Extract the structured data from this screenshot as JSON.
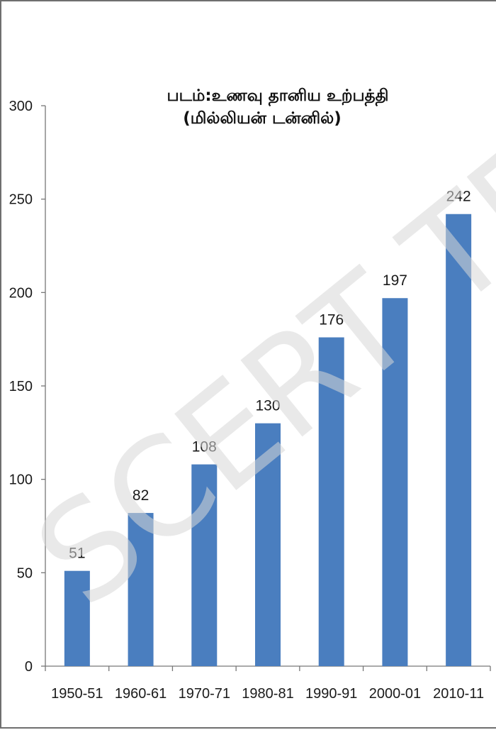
{
  "chart_data": {
    "type": "bar",
    "title": "படம்:உணவு தானிய உற்பத்தி",
    "subtitle": "(மில்லியன் டன்னில்)",
    "xlabel": "",
    "ylabel": "",
    "categories": [
      "1950-51",
      "1960-61",
      "1970-71",
      "1980-81",
      "1990-91",
      "2000-01",
      "2010-11"
    ],
    "values": [
      51,
      82,
      108,
      130,
      176,
      197,
      242
    ],
    "data_labels": [
      "51",
      "82",
      "108",
      "130",
      "176",
      "197",
      "242"
    ],
    "ylim": [
      0,
      300
    ],
    "yticks": [
      0,
      50,
      100,
      150,
      200,
      250,
      300
    ],
    "ytick_labels": [
      "0",
      "50",
      "100",
      "150",
      "200",
      "250",
      "300"
    ],
    "grid": false,
    "legend": "none",
    "bar_color": "#4a7ebf"
  },
  "watermark": "SCERT TELA"
}
